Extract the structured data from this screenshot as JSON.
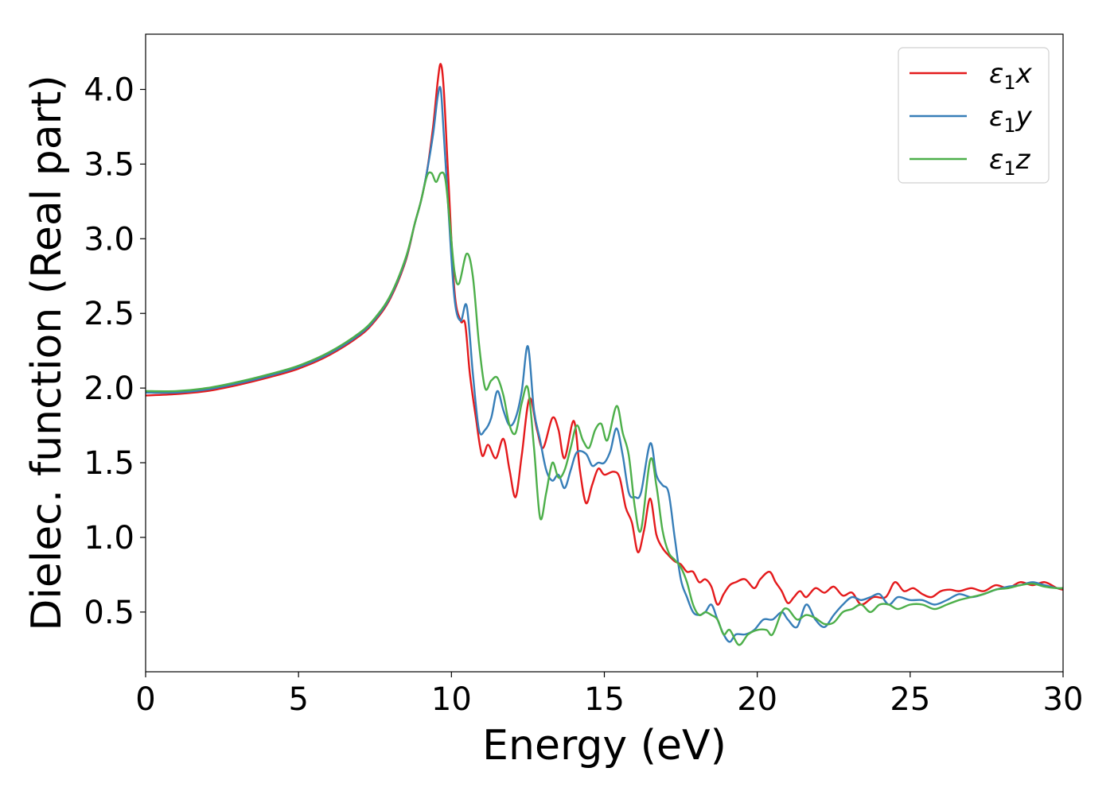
{
  "chart_data": {
    "type": "line",
    "xlabel": "Energy (eV)",
    "ylabel": "Dielec. function (Real part)",
    "xlim": [
      0,
      30
    ],
    "ylim": [
      0.1,
      4.37
    ],
    "xticks": [
      0,
      5,
      10,
      15,
      20,
      25,
      30
    ],
    "yticks": [
      0.5,
      1.0,
      1.5,
      2.0,
      2.5,
      3.0,
      3.5,
      4.0
    ],
    "xtick_labels": [
      "0",
      "5",
      "10",
      "15",
      "20",
      "25",
      "30"
    ],
    "ytick_labels": [
      "0.5",
      "1.0",
      "1.5",
      "2.0",
      "2.5",
      "3.0",
      "3.5",
      "4.0"
    ],
    "grid": false,
    "legend_position": "top-right",
    "series": [
      {
        "name": "ε1x",
        "color": "#e41a1c",
        "x": [
          0,
          1,
          2,
          3,
          4,
          5,
          6,
          7,
          7.5,
          8,
          8.5,
          8.8,
          9.0,
          9.2,
          9.4,
          9.55,
          9.65,
          9.75,
          9.9,
          10.1,
          10.3,
          10.45,
          10.6,
          10.8,
          11.0,
          11.2,
          11.45,
          11.7,
          11.9,
          12.1,
          12.3,
          12.55,
          12.8,
          13.0,
          13.3,
          13.5,
          13.7,
          14.0,
          14.2,
          14.4,
          14.6,
          14.8,
          15.0,
          15.3,
          15.5,
          15.7,
          15.9,
          16.1,
          16.3,
          16.5,
          16.7,
          16.9,
          17.1,
          17.3,
          17.5,
          17.7,
          17.9,
          18.1,
          18.3,
          18.5,
          18.7,
          18.9,
          19.1,
          19.3,
          19.6,
          19.9,
          20.1,
          20.4,
          20.6,
          20.8,
          21.0,
          21.2,
          21.4,
          21.6,
          21.9,
          22.2,
          22.5,
          22.8,
          23.1,
          23.4,
          23.8,
          24.2,
          24.5,
          24.8,
          25.1,
          25.4,
          25.7,
          26.0,
          26.3,
          26.6,
          27.0,
          27.4,
          27.8,
          28.2,
          28.6,
          29.0,
          29.4,
          29.8,
          30
        ],
        "y": [
          1.95,
          1.96,
          1.98,
          2.02,
          2.07,
          2.13,
          2.22,
          2.35,
          2.45,
          2.6,
          2.85,
          3.1,
          3.25,
          3.45,
          3.75,
          4.05,
          4.17,
          4.0,
          3.4,
          2.65,
          2.45,
          2.43,
          2.1,
          1.8,
          1.55,
          1.62,
          1.53,
          1.66,
          1.45,
          1.27,
          1.55,
          1.93,
          1.72,
          1.6,
          1.8,
          1.72,
          1.53,
          1.78,
          1.45,
          1.23,
          1.35,
          1.46,
          1.42,
          1.44,
          1.4,
          1.2,
          1.1,
          0.9,
          1.05,
          1.26,
          1.02,
          0.93,
          0.88,
          0.84,
          0.82,
          0.77,
          0.77,
          0.7,
          0.72,
          0.67,
          0.55,
          0.62,
          0.68,
          0.7,
          0.72,
          0.66,
          0.72,
          0.77,
          0.7,
          0.64,
          0.56,
          0.6,
          0.64,
          0.6,
          0.66,
          0.63,
          0.67,
          0.61,
          0.63,
          0.55,
          0.6,
          0.6,
          0.7,
          0.64,
          0.66,
          0.62,
          0.6,
          0.64,
          0.65,
          0.64,
          0.66,
          0.64,
          0.68,
          0.66,
          0.7,
          0.68,
          0.7,
          0.66,
          0.65
        ]
      },
      {
        "name": "ε1y",
        "color": "#377eb8",
        "x": [
          0,
          1,
          2,
          3,
          4,
          5,
          6,
          7,
          7.5,
          8,
          8.5,
          8.8,
          9.0,
          9.2,
          9.4,
          9.55,
          9.65,
          9.75,
          9.9,
          10.1,
          10.3,
          10.5,
          10.7,
          10.9,
          11.1,
          11.3,
          11.5,
          11.7,
          11.9,
          12.1,
          12.3,
          12.5,
          12.7,
          12.9,
          13.1,
          13.3,
          13.5,
          13.7,
          13.9,
          14.1,
          14.4,
          14.6,
          14.8,
          15.0,
          15.2,
          15.4,
          15.6,
          15.8,
          16.0,
          16.2,
          16.5,
          16.7,
          16.9,
          17.1,
          17.3,
          17.5,
          17.7,
          17.9,
          18.1,
          18.3,
          18.5,
          18.7,
          18.9,
          19.1,
          19.3,
          19.6,
          19.9,
          20.2,
          20.5,
          20.8,
          21.0,
          21.3,
          21.6,
          21.9,
          22.2,
          22.5,
          22.8,
          23.1,
          23.4,
          23.7,
          24.0,
          24.3,
          24.6,
          25.0,
          25.4,
          25.8,
          26.2,
          26.6,
          27.0,
          27.4,
          27.8,
          28.2,
          28.6,
          29.0,
          29.4,
          29.8,
          30
        ],
        "y": [
          1.97,
          1.97,
          1.99,
          2.03,
          2.08,
          2.14,
          2.23,
          2.36,
          2.46,
          2.61,
          2.86,
          3.1,
          3.25,
          3.45,
          3.7,
          3.95,
          4.0,
          3.7,
          3.2,
          2.6,
          2.45,
          2.55,
          2.1,
          1.72,
          1.72,
          1.8,
          1.98,
          1.85,
          1.75,
          1.8,
          1.98,
          2.28,
          1.85,
          1.65,
          1.45,
          1.38,
          1.42,
          1.33,
          1.45,
          1.57,
          1.56,
          1.48,
          1.5,
          1.5,
          1.58,
          1.73,
          1.55,
          1.3,
          1.27,
          1.3,
          1.63,
          1.42,
          1.35,
          1.3,
          1.0,
          0.72,
          0.6,
          0.5,
          0.48,
          0.5,
          0.55,
          0.45,
          0.35,
          0.3,
          0.35,
          0.35,
          0.38,
          0.45,
          0.45,
          0.5,
          0.45,
          0.4,
          0.55,
          0.45,
          0.4,
          0.48,
          0.55,
          0.6,
          0.58,
          0.6,
          0.62,
          0.55,
          0.6,
          0.58,
          0.58,
          0.55,
          0.58,
          0.62,
          0.6,
          0.62,
          0.65,
          0.67,
          0.68,
          0.7,
          0.68,
          0.66,
          0.66
        ]
      },
      {
        "name": "ε1z",
        "color": "#4daf4a",
        "x": [
          0,
          1,
          2,
          3,
          4,
          5,
          6,
          7,
          7.5,
          8,
          8.5,
          8.8,
          9.0,
          9.2,
          9.35,
          9.5,
          9.65,
          9.8,
          9.95,
          10.1,
          10.25,
          10.5,
          10.7,
          10.9,
          11.1,
          11.3,
          11.5,
          11.7,
          11.9,
          12.1,
          12.3,
          12.5,
          12.7,
          12.9,
          13.1,
          13.3,
          13.5,
          13.7,
          13.9,
          14.1,
          14.3,
          14.5,
          14.7,
          14.9,
          15.1,
          15.4,
          15.6,
          15.8,
          16.0,
          16.2,
          16.5,
          16.7,
          16.9,
          17.1,
          17.3,
          17.5,
          17.7,
          17.9,
          18.1,
          18.3,
          18.5,
          18.7,
          18.9,
          19.1,
          19.4,
          19.7,
          20.0,
          20.3,
          20.5,
          20.8,
          21.0,
          21.3,
          21.6,
          21.9,
          22.2,
          22.5,
          22.8,
          23.1,
          23.4,
          23.7,
          24.0,
          24.3,
          24.6,
          25.0,
          25.4,
          25.8,
          26.2,
          26.6,
          27.0,
          27.4,
          27.8,
          28.2,
          28.6,
          29.0,
          29.4,
          29.8,
          30
        ],
        "y": [
          1.98,
          1.98,
          2.0,
          2.04,
          2.09,
          2.15,
          2.24,
          2.37,
          2.47,
          2.62,
          2.87,
          3.1,
          3.25,
          3.42,
          3.44,
          3.38,
          3.44,
          3.4,
          3.1,
          2.78,
          2.7,
          2.9,
          2.75,
          2.3,
          2.0,
          2.05,
          2.07,
          1.95,
          1.75,
          1.7,
          1.9,
          2.0,
          1.6,
          1.13,
          1.3,
          1.5,
          1.4,
          1.45,
          1.6,
          1.75,
          1.65,
          1.6,
          1.72,
          1.76,
          1.65,
          1.88,
          1.7,
          1.55,
          1.2,
          1.05,
          1.52,
          1.35,
          1.05,
          0.9,
          0.85,
          0.8,
          0.7,
          0.55,
          0.48,
          0.5,
          0.48,
          0.45,
          0.35,
          0.38,
          0.28,
          0.35,
          0.38,
          0.38,
          0.35,
          0.5,
          0.52,
          0.45,
          0.48,
          0.46,
          0.42,
          0.43,
          0.5,
          0.52,
          0.55,
          0.5,
          0.55,
          0.55,
          0.52,
          0.55,
          0.55,
          0.52,
          0.55,
          0.58,
          0.6,
          0.62,
          0.65,
          0.66,
          0.68,
          0.69,
          0.67,
          0.66,
          0.66
        ]
      }
    ]
  }
}
